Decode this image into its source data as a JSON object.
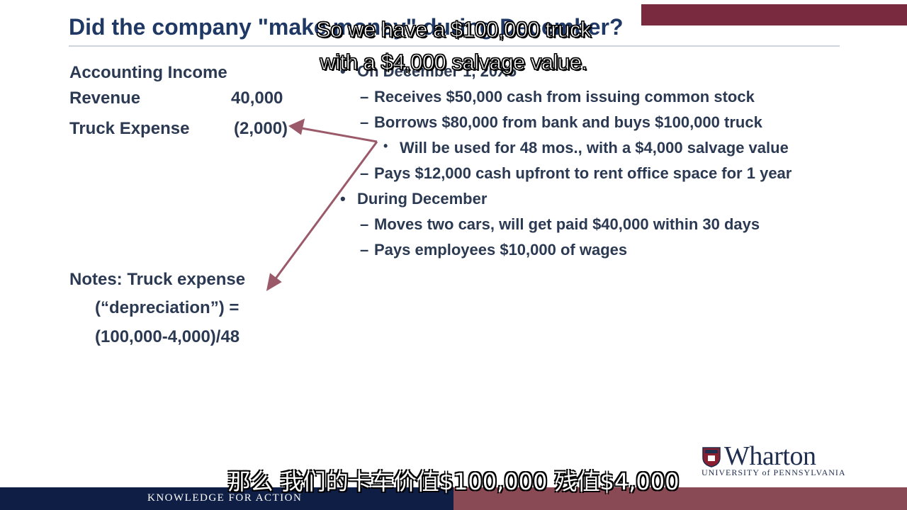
{
  "slide": {
    "title": "Did the company \"make money\" during December?",
    "income": {
      "heading": "Accounting Income",
      "rows": [
        {
          "label": "Revenue",
          "value": "40,000"
        },
        {
          "label": "Truck Expense",
          "value": "(2,000)"
        }
      ],
      "notes": [
        "Notes: Truck expense",
        "(“depreciation”) =",
        "(100,000-4,000)/48"
      ]
    },
    "bullets": [
      {
        "level": 1,
        "marker": "•",
        "text": "On December 1, 20X5"
      },
      {
        "level": 2,
        "marker": "–",
        "text": "Receives $50,000 cash from issuing common stock"
      },
      {
        "level": 2,
        "marker": "–",
        "text": "Borrows $80,000 from bank and buys $100,000 truck"
      },
      {
        "level": 3,
        "marker": "•",
        "text": "Will be used for 48 mos., with a $4,000 salvage value"
      },
      {
        "level": 2,
        "marker": "–",
        "text": "Pays $12,000 cash upfront to rent office space for 1 year"
      },
      {
        "level": 1,
        "marker": "•",
        "text": "During December"
      },
      {
        "level": 2,
        "marker": "–",
        "text": "Moves two cars, will get paid $40,000 within 30 days"
      },
      {
        "level": 2,
        "marker": "–",
        "text": "Pays employees $10,000 of wages"
      }
    ],
    "logo": {
      "word": "Wharton",
      "university": "UNIVERSITY of PENNSYLVANIA"
    },
    "footer": "KNOWLEDGE FOR ACTION",
    "colors": {
      "title": "#1f3864",
      "text": "#2b3a52",
      "arrow": "#9b5a6a",
      "footer_left": "#0f1e45",
      "footer_right": "#8a4a55"
    }
  },
  "subtitles": {
    "english": [
      "So we have a $100,000 truck",
      "with a $4,000 salvage value."
    ],
    "chinese": "那么 我们的卡车价值$100,000 残值$4,000"
  }
}
